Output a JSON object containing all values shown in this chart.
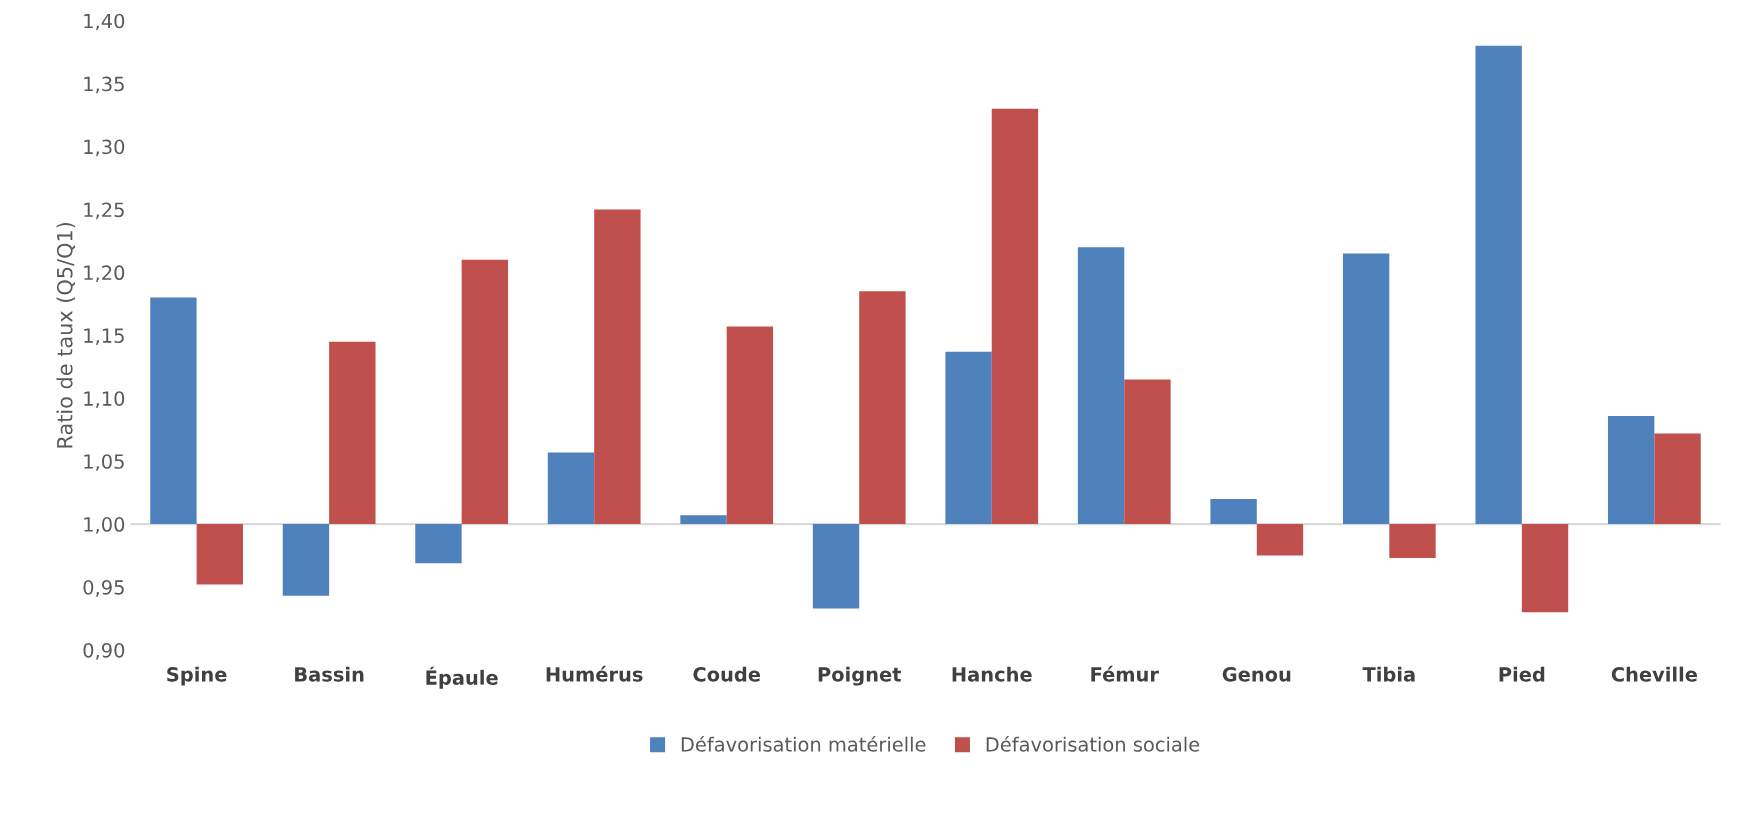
{
  "chart_data": {
    "type": "bar",
    "ylabel": "Ratio de taux (Q5/Q1)",
    "categories": [
      "Spine",
      "Bassin",
      "Épaule",
      "Humérus",
      "Coude",
      "Poignet",
      "Hanche",
      "Fémur",
      "Genou",
      "Tibia",
      "Pied",
      "Cheville"
    ],
    "series": [
      {
        "name": "Défavorisation matérielle",
        "color": "#4f81bd",
        "base": [
          1,
          1,
          1,
          1,
          1,
          1,
          1,
          1,
          1,
          1,
          1,
          1
        ],
        "values": [
          0.18,
          -0.057,
          -0.031,
          0.057,
          0.007,
          -0.067,
          0.137,
          0.22,
          0.02,
          0.215,
          0.38,
          0.086
        ]
      },
      {
        "name": "Défavorisation sociale",
        "color": "#c0504d",
        "base": [
          1,
          1,
          1,
          1,
          1,
          1,
          1,
          1,
          1,
          1,
          1,
          1
        ],
        "values": [
          -0.048,
          0.145,
          0.21,
          0.25,
          0.157,
          0.185,
          0.33,
          0.115,
          -0.025,
          -0.027,
          -0.07,
          0.072
        ]
      }
    ],
    "ylim": [
      0.9,
      1.4
    ],
    "yticks": [
      {
        "value": 0.9,
        "label": "0,90"
      },
      {
        "value": 0.95,
        "label": "0,95"
      },
      {
        "value": 1.0,
        "label": "1,00"
      },
      {
        "value": 1.05,
        "label": "1,05"
      },
      {
        "value": 1.1,
        "label": "1,10"
      },
      {
        "value": 1.15,
        "label": "1,15"
      },
      {
        "value": 1.2,
        "label": "1,20"
      },
      {
        "value": 1.25,
        "label": "1,25"
      },
      {
        "value": 1.3,
        "label": "1,30"
      },
      {
        "value": 1.35,
        "label": "1,35"
      },
      {
        "value": 1.4,
        "label": "1,40"
      }
    ],
    "ref_lines": [
      {
        "axis": "y",
        "value": 1.0,
        "color": "#d9d9d9"
      }
    ],
    "grid": false,
    "legend": "bottom"
  }
}
